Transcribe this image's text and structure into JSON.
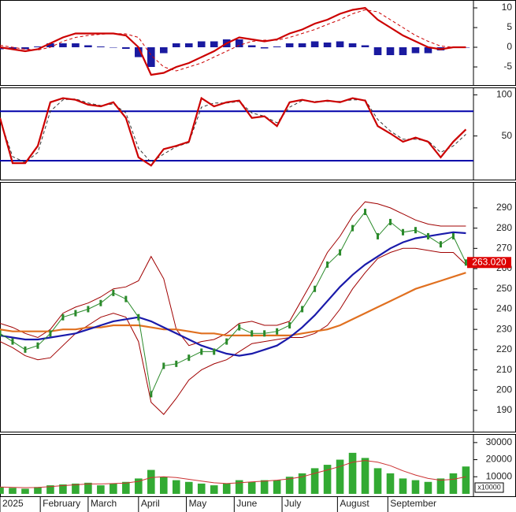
{
  "chart_data": [
    {
      "type": "line",
      "xlim": [
        0,
        188
      ],
      "ylim": [
        -9.6,
        12
      ],
      "yticks": [
        -5,
        0,
        5,
        10
      ],
      "x": [
        0,
        5,
        10,
        15,
        20,
        25,
        30,
        35,
        40,
        45,
        50,
        55,
        60,
        65,
        70,
        75,
        80,
        85,
        90,
        95,
        100,
        105,
        110,
        115,
        120,
        125,
        130,
        135,
        140,
        145,
        150,
        155,
        160,
        165,
        170,
        175,
        180,
        185
      ],
      "series": [
        {
          "style": "bar",
          "color": "#1a1aa0",
          "values": [
            -0.5,
            -0.5,
            -0.5,
            0.2,
            1,
            1,
            1,
            0.5,
            0.2,
            0,
            -0.4,
            -2.5,
            -5,
            -1.5,
            1,
            1,
            1.5,
            1.5,
            2,
            2,
            0.5,
            -0.3,
            0.2,
            1,
            1,
            1.5,
            1.2,
            1.5,
            1,
            0.5,
            -2,
            -2,
            -2,
            -1.5,
            -1.5,
            -0.8,
            0,
            0
          ]
        },
        {
          "style": "dashed",
          "color": "#cc0000",
          "values": [
            0.5,
            0,
            -0.5,
            -0.7,
            0,
            1.5,
            2.5,
            3,
            3.3,
            3.5,
            3.4,
            2.5,
            -2,
            -5,
            -6,
            -5,
            -4,
            -2.5,
            -1,
            0.5,
            1.5,
            1.8,
            1.8,
            2.5,
            3.5,
            4.5,
            5.8,
            7,
            8.5,
            9.5,
            9,
            7,
            5,
            3,
            1.5,
            0.3,
            0,
            0
          ]
        },
        {
          "style": "solid",
          "color": "#cc0000",
          "values": [
            0,
            -0.5,
            -1,
            -0.5,
            1,
            2.5,
            3.5,
            3.5,
            3.5,
            3.5,
            3,
            0,
            -7,
            -6.5,
            -5,
            -4,
            -2.5,
            -1,
            1,
            2.5,
            2,
            1.5,
            2,
            3.5,
            4.5,
            6,
            7,
            8.5,
            9.5,
            10,
            7,
            5,
            3,
            1.5,
            0,
            -0.5,
            0,
            0
          ]
        }
      ]
    },
    {
      "type": "line",
      "xlim": [
        0,
        188
      ],
      "ylim": [
        -3,
        109
      ],
      "yticks": [
        50,
        100
      ],
      "levels": [
        80,
        20
      ],
      "level_color": "#0000aa",
      "x": [
        0,
        5,
        10,
        15,
        20,
        25,
        30,
        35,
        40,
        45,
        50,
        55,
        60,
        65,
        70,
        75,
        80,
        85,
        90,
        95,
        100,
        105,
        110,
        115,
        120,
        125,
        130,
        135,
        140,
        145,
        150,
        155,
        160,
        165,
        170,
        175,
        180,
        185
      ],
      "series": [
        {
          "style": "dashed",
          "color": "#333333",
          "values": [
            70,
            25,
            18,
            30,
            80,
            94,
            95,
            90,
            87,
            89,
            78,
            35,
            18,
            28,
            37,
            42,
            85,
            90,
            90,
            92,
            78,
            74,
            66,
            85,
            93,
            92,
            92,
            92,
            94,
            94,
            70,
            56,
            46,
            46,
            44,
            30,
            38,
            52
          ]
        },
        {
          "style": "solid",
          "color": "#cc0000",
          "values": [
            72,
            17,
            17,
            38,
            91,
            96,
            94,
            88,
            86,
            91,
            72,
            24,
            14,
            34,
            38,
            43,
            96,
            86,
            91,
            93,
            72,
            74,
            62,
            91,
            94,
            91,
            93,
            91,
            96,
            93,
            62,
            53,
            43,
            48,
            43,
            24,
            43,
            58
          ]
        }
      ]
    },
    {
      "type": "line",
      "xlim": [
        0,
        188
      ],
      "ylim": [
        179.5,
        302.8
      ],
      "yticks": [
        190,
        200,
        210,
        220,
        230,
        240,
        250,
        260,
        270,
        280,
        290
      ],
      "x": [
        0,
        5,
        10,
        15,
        20,
        25,
        30,
        35,
        40,
        45,
        50,
        55,
        60,
        65,
        70,
        75,
        80,
        85,
        90,
        95,
        100,
        105,
        110,
        115,
        120,
        125,
        130,
        135,
        140,
        145,
        150,
        155,
        160,
        165,
        170,
        175,
        180,
        185
      ],
      "series": [
        {
          "style": "thin",
          "color": "#a00000",
          "values": [
            233,
            231,
            228,
            226,
            230,
            238,
            241,
            243,
            246,
            250,
            251,
            254,
            266,
            255,
            230,
            222,
            224,
            225,
            228,
            233,
            234,
            232,
            232,
            234,
            245,
            256,
            268,
            276,
            286,
            293,
            292,
            290,
            287,
            284,
            282,
            281,
            281,
            281
          ]
        },
        {
          "style": "thin",
          "color": "#a00000",
          "values": [
            224,
            221,
            217,
            215,
            216,
            222,
            228,
            232,
            236,
            238,
            236,
            224,
            194,
            188,
            196,
            205,
            210,
            213,
            215,
            219,
            223,
            224,
            225,
            226,
            226,
            228,
            232,
            240,
            250,
            258,
            265,
            268,
            270,
            270,
            269,
            268,
            268,
            262
          ]
        },
        {
          "style": "solid",
          "color": "#e07020",
          "values": [
            230,
            229,
            229,
            229,
            229,
            230,
            230,
            231,
            231,
            232,
            232,
            232,
            231,
            230,
            230,
            229,
            228,
            228,
            227,
            227,
            227,
            227,
            227,
            227,
            228,
            229,
            230,
            232,
            235,
            238,
            241,
            244,
            247,
            250,
            252,
            254,
            256,
            258
          ]
        },
        {
          "style": "solid",
          "color": "#1a1aaa",
          "values": [
            227,
            226,
            225,
            225,
            226,
            227,
            228,
            230,
            232,
            234,
            235,
            236,
            234,
            231,
            228,
            225,
            222,
            220,
            218,
            217,
            218,
            220,
            222,
            226,
            231,
            237,
            244,
            251,
            257,
            262,
            266,
            270,
            273,
            275,
            276,
            277,
            278,
            277.5
          ]
        },
        {
          "style": "marker",
          "color": "#2a8a2a",
          "values": [
            228,
            224,
            220,
            222,
            228,
            236,
            238,
            240,
            243,
            248,
            245,
            236,
            198,
            212,
            213,
            216,
            219,
            219,
            224,
            231,
            228,
            228,
            229,
            232,
            240,
            250,
            262,
            268,
            280,
            288,
            276,
            283,
            278,
            279,
            276,
            272,
            276,
            263.02
          ]
        }
      ],
      "last_price": {
        "value": 263.02,
        "label": "263.020"
      },
      "last_price_color": "#dd0000"
    },
    {
      "type": "line",
      "xlim": [
        0,
        188
      ],
      "ylim": [
        -1400,
        35000
      ],
      "yticks": [
        10000,
        20000,
        30000
      ],
      "unit_label": "x10000",
      "x": [
        0,
        5,
        10,
        15,
        20,
        25,
        30,
        35,
        40,
        45,
        50,
        55,
        60,
        65,
        70,
        75,
        80,
        85,
        90,
        95,
        100,
        105,
        110,
        115,
        120,
        125,
        130,
        135,
        140,
        145,
        150,
        155,
        160,
        165,
        170,
        175,
        180,
        185
      ],
      "series": [
        {
          "style": "bar",
          "color": "#33aa33",
          "values": [
            4000,
            3500,
            3000,
            4000,
            5000,
            5500,
            6000,
            6500,
            5000,
            6000,
            7000,
            9000,
            14000,
            10000,
            8000,
            7000,
            6000,
            5000,
            6000,
            8000,
            7000,
            8000,
            8000,
            10000,
            12000,
            15000,
            17000,
            20000,
            24000,
            21000,
            15000,
            12000,
            9000,
            8000,
            7000,
            9000,
            12000,
            16000
          ]
        },
        {
          "style": "thin",
          "color": "#cc3333",
          "values": [
            4000,
            3800,
            3600,
            3700,
            4200,
            4800,
            5300,
            5800,
            5800,
            6000,
            6300,
            7300,
            9500,
            10000,
            9500,
            8500,
            7500,
            6500,
            6000,
            6500,
            7000,
            7500,
            8000,
            8800,
            10000,
            12000,
            14000,
            16000,
            18500,
            19500,
            18500,
            16500,
            13500,
            11000,
            9000,
            8000,
            8500,
            10000
          ]
        }
      ],
      "xticks": [
        {
          "value": 0,
          "label": "2025"
        },
        {
          "value": 16,
          "label": "February"
        },
        {
          "value": 35,
          "label": "March"
        },
        {
          "value": 55,
          "label": "April"
        },
        {
          "value": 74,
          "label": "May"
        },
        {
          "value": 93,
          "label": "June"
        },
        {
          "value": 112,
          "label": "July"
        },
        {
          "value": 134,
          "label": "August"
        },
        {
          "value": 154,
          "label": "September"
        }
      ]
    }
  ]
}
